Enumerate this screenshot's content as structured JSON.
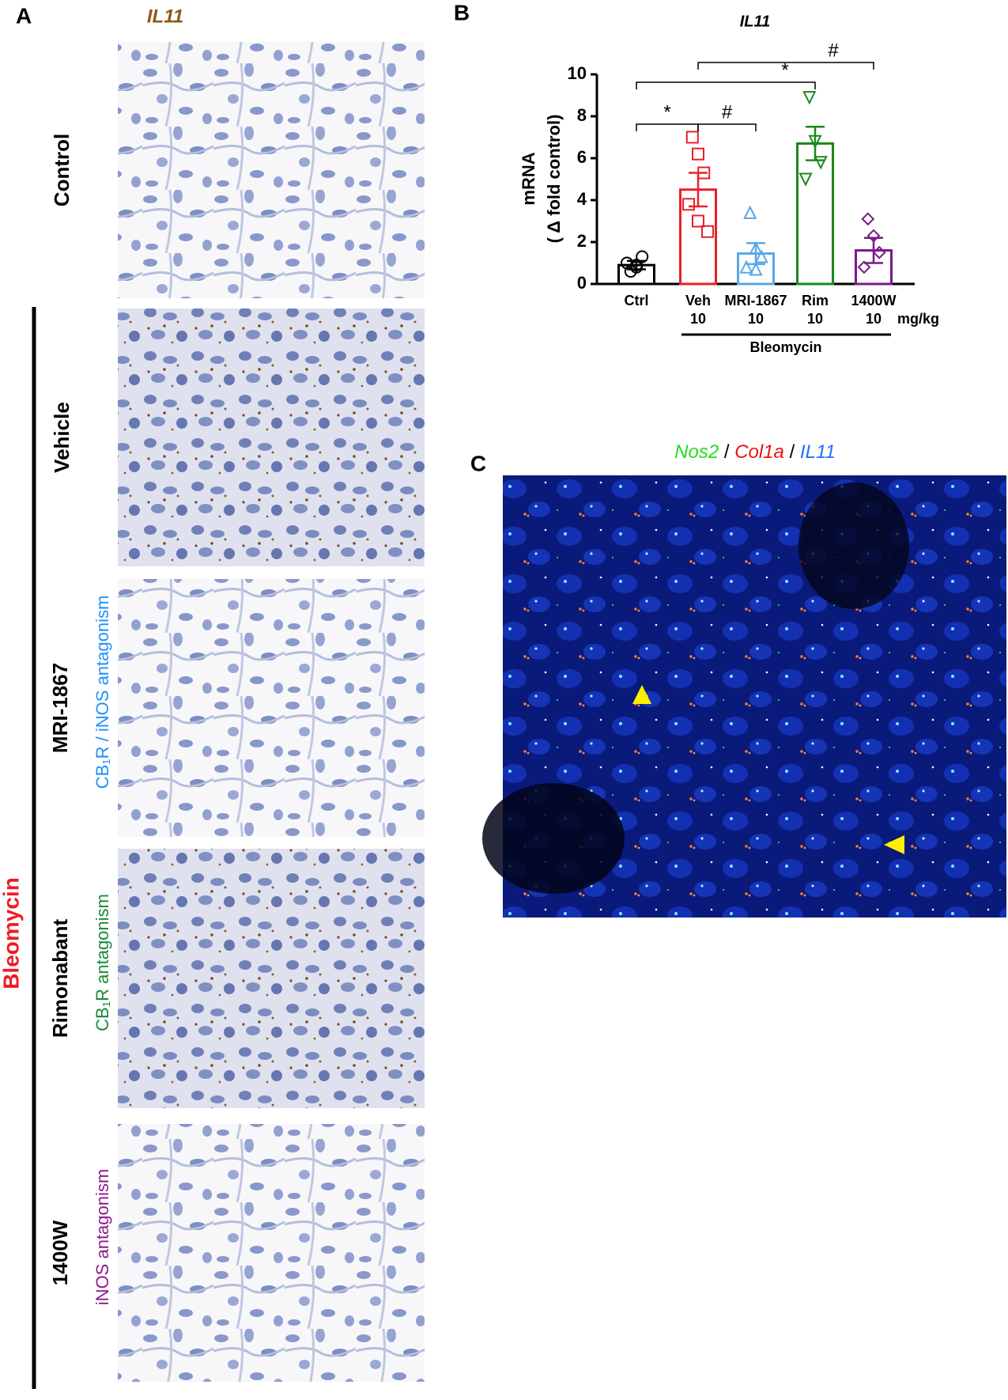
{
  "panel_a": {
    "label": "A",
    "title": "IL11",
    "group_label": "Bleomycin",
    "rows": [
      {
        "label": "Control"
      },
      {
        "label": "Vehicle"
      },
      {
        "label": "MRI-1867",
        "sublabel": "CB₁R / iNOS antagonism",
        "sublabel_color": "#1e8fff"
      },
      {
        "label": "Rimonabant",
        "sublabel": "CB₁R antagonism",
        "sublabel_color": "#1a8a3a"
      },
      {
        "label": "1400W",
        "sublabel": "iNOS antagonism",
        "sublabel_color": "#8b1a8b"
      }
    ]
  },
  "chart_data": {
    "type": "bar",
    "panel_label": "B",
    "title": "IL11",
    "ylabel": [
      "mRNA",
      "( Δ fold control)"
    ],
    "categories": [
      "Ctrl",
      "Veh",
      "MRI-1867",
      "Rim",
      "1400W"
    ],
    "doses": [
      null,
      "10",
      "10",
      "10",
      "10"
    ],
    "dose_unit": "mg/kg",
    "group_label": "Bleomycin",
    "colors": [
      "#000000",
      "#e8202a",
      "#5aa7e8",
      "#1a8a1a",
      "#7a1a8a"
    ],
    "markers": [
      "circle",
      "square",
      "triangle",
      "triangle-down",
      "diamond"
    ],
    "values": [
      0.9,
      4.5,
      1.45,
      6.7,
      1.6
    ],
    "errors": [
      0.2,
      0.8,
      0.5,
      0.8,
      0.6
    ],
    "points": [
      [
        0.6,
        0.8,
        1.3,
        1.0,
        0.9
      ],
      [
        7.0,
        6.2,
        5.3,
        3.8,
        3.0,
        2.5
      ],
      [
        3.4,
        1.7,
        1.3,
        0.8,
        0.7
      ],
      [
        8.9,
        6.8,
        5.8,
        5.0
      ],
      [
        3.1,
        2.3,
        1.5,
        0.8
      ]
    ],
    "ylim": [
      0,
      10
    ],
    "yticks": [
      0,
      2,
      4,
      6,
      8,
      10
    ],
    "annotations": [
      "*",
      "#",
      "*",
      "#"
    ]
  },
  "panel_c": {
    "label": "C",
    "title_parts": [
      {
        "text": "Nos2",
        "color": "#22dd22",
        "italic": true
      },
      {
        "text": " / ",
        "color": "#000000",
        "italic": false
      },
      {
        "text": "Col1a",
        "color": "#ee1111",
        "italic": true
      },
      {
        "text": " / ",
        "color": "#000000",
        "italic": false
      },
      {
        "text": "IL11",
        "color": "#1e6fff",
        "italic": true
      }
    ]
  }
}
